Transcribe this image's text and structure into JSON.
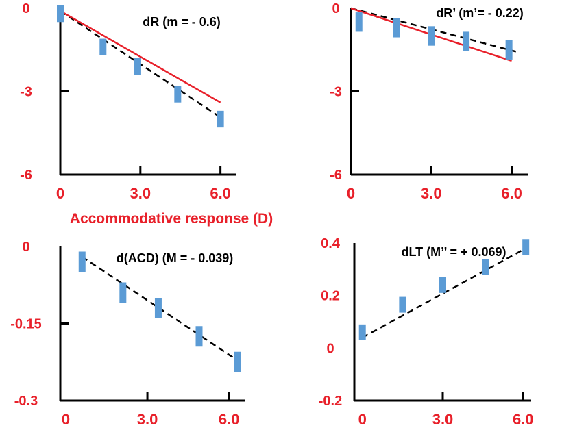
{
  "shared_xlabel": "Accommodative response (D)",
  "colors": {
    "axis": "#000000",
    "tick_label": "#e8202a",
    "data_bar": "#5b9bd5",
    "fit_red": "#e8202a",
    "fit_dashed": "#000000"
  },
  "chart_data": [
    {
      "type": "scatter",
      "title": "dR (m = - 0.6)",
      "xlabel": "Accommodative response (D)",
      "ylabel": "",
      "xlim": [
        0,
        6.6
      ],
      "ylim": [
        -6,
        0
      ],
      "xticks": [
        0,
        3.0,
        6.0
      ],
      "xtick_labels": [
        "0",
        "3.0",
        "6.0"
      ],
      "yticks": [
        0,
        -3,
        -6
      ],
      "ytick_labels": [
        "0",
        "-3",
        "-6"
      ],
      "series": [
        {
          "x": [
            0.0,
            1.6,
            2.9,
            4.4,
            6.0
          ],
          "y": [
            -0.2,
            -1.4,
            -2.1,
            -3.1,
            -4.0
          ],
          "err": [
            0.3,
            0.3,
            0.3,
            0.3,
            0.3
          ]
        }
      ],
      "fits": [
        {
          "style": "dashed",
          "x": [
            0,
            6.1
          ],
          "y": [
            -0.1,
            -4.0
          ]
        },
        {
          "style": "solid-red",
          "x": [
            0,
            6.0
          ],
          "y": [
            -0.1,
            -3.4
          ]
        }
      ]
    },
    {
      "type": "scatter",
      "title": "dR’ (m’= - 0.22)",
      "xlabel": "",
      "ylabel": "",
      "xlim": [
        0,
        6.6
      ],
      "ylim": [
        -6,
        0
      ],
      "xticks": [
        0,
        3.0,
        6.0
      ],
      "xtick_labels": [
        "0",
        "3.0",
        "6.0"
      ],
      "yticks": [
        0,
        -3,
        -6
      ],
      "ytick_labels": [
        "0",
        "-3",
        "-6"
      ],
      "series": [
        {
          "x": [
            0.3,
            1.7,
            3.0,
            4.3,
            5.9
          ],
          "y": [
            -0.5,
            -0.7,
            -1.0,
            -1.2,
            -1.5
          ],
          "err": [
            0.35,
            0.35,
            0.35,
            0.35,
            0.35
          ]
        }
      ],
      "fits": [
        {
          "style": "dashed",
          "x": [
            0,
            6.3
          ],
          "y": [
            0.0,
            -1.6
          ]
        },
        {
          "style": "solid-red",
          "x": [
            0,
            6.0
          ],
          "y": [
            0.0,
            -1.9
          ]
        }
      ]
    },
    {
      "type": "scatter",
      "title": "d(ACD) (M = - 0.039)",
      "xlabel": "",
      "ylabel": "",
      "xlim": [
        -0.2,
        6.6
      ],
      "ylim": [
        -0.3,
        0
      ],
      "xticks": [
        0,
        3.0,
        6.0
      ],
      "xtick_labels": [
        "0",
        "3.0",
        "6.0"
      ],
      "yticks": [
        0,
        -0.15,
        -0.3
      ],
      "ytick_labels": [
        "0",
        "-0.15",
        "-0.3"
      ],
      "series": [
        {
          "x": [
            0.6,
            2.1,
            3.4,
            4.9,
            6.3
          ],
          "y": [
            -0.03,
            -0.09,
            -0.12,
            -0.175,
            -0.225
          ],
          "err": [
            0.02,
            0.02,
            0.02,
            0.02,
            0.02
          ]
        }
      ],
      "fits": [
        {
          "style": "dashed",
          "x": [
            0.6,
            6.4
          ],
          "y": [
            -0.02,
            -0.225
          ]
        }
      ]
    },
    {
      "type": "scatter",
      "title": "dLT (M’’ = + 0.069)",
      "xlabel": "",
      "ylabel": "",
      "xlim": [
        -0.3,
        6.3
      ],
      "ylim": [
        -0.2,
        0.4
      ],
      "xticks": [
        0,
        3.0,
        6.0
      ],
      "xtick_labels": [
        "0",
        "3.0",
        "6.0"
      ],
      "yticks": [
        0.4,
        0.2,
        0,
        -0.2
      ],
      "ytick_labels": [
        "0.4",
        "0.2",
        "0",
        "-0.2"
      ],
      "series": [
        {
          "x": [
            0.0,
            1.5,
            3.0,
            4.6,
            6.1
          ],
          "y": [
            0.06,
            0.165,
            0.24,
            0.31,
            0.385
          ],
          "err": [
            0.03,
            0.03,
            0.03,
            0.03,
            0.03
          ]
        }
      ],
      "fits": [
        {
          "style": "dashed",
          "x": [
            0.0,
            6.1
          ],
          "y": [
            0.04,
            0.38
          ]
        }
      ]
    }
  ]
}
